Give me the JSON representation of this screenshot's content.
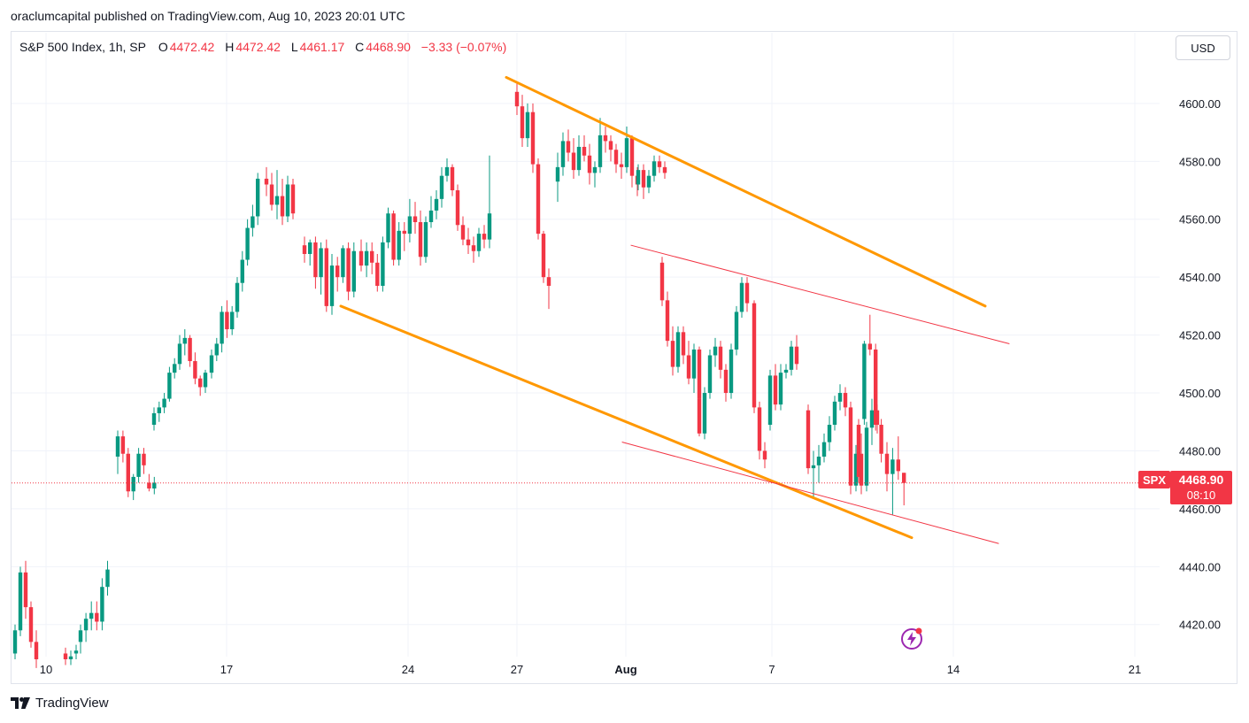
{
  "publisher_line": "oraclumcapital published on TradingView.com, Aug 10, 2023 20:01 UTC",
  "legend": {
    "title": "S&P 500 Index, 1h, SP",
    "open_key": "O",
    "open": "4472.42",
    "high_key": "H",
    "high": "4472.42",
    "low_key": "L",
    "low": "4461.17",
    "close_key": "C",
    "close": "4468.90",
    "change": "−3.33 (−0.07%)"
  },
  "currency_button": "USD",
  "price_tag": {
    "symbol": "SPX",
    "price": "4468.90",
    "countdown": "08:10"
  },
  "brand": {
    "name": "TradingView",
    "icon": "tradingview-logo-icon"
  },
  "badge_icon": "lightning-icon",
  "colors": {
    "up": "#089981",
    "down": "#f23645",
    "channel_main": "#ff9800",
    "channel_inner": "#f23645",
    "grid": "#f0f3fa"
  },
  "chart_data": {
    "type": "candlestick",
    "interval": "1h",
    "ylim": [
      4408,
      4618
    ],
    "x_tick_labels": [
      "10",
      "17",
      "24",
      "27",
      "Aug",
      "7",
      "14",
      "21"
    ],
    "y_ticks": [
      4420.0,
      4440.0,
      4460.0,
      4480.0,
      4500.0,
      4520.0,
      4540.0,
      4560.0,
      4580.0,
      4600.0
    ],
    "y_tick_labels": [
      "4420.00",
      "4440.00",
      "4460.00",
      "4480.00",
      "4500.00",
      "4520.00",
      "4540.00",
      "4560.00",
      "4580.00",
      "4600.00"
    ],
    "last_price": 4468.9,
    "grid": true,
    "candles_ohlc": [
      [
        4410,
        4420,
        4408,
        4418
      ],
      [
        4418,
        4440,
        4416,
        4438
      ],
      [
        4438,
        4442,
        4422,
        4426
      ],
      [
        4426,
        4428,
        4412,
        4414
      ],
      [
        4414,
        4418,
        4405,
        4408
      ],
      [
        4410,
        4412,
        4406,
        4408
      ],
      [
        4408,
        4411,
        4406,
        4409
      ],
      [
        4410,
        4413,
        4408,
        4411
      ],
      [
        4414,
        4420,
        4410,
        4418
      ],
      [
        4418,
        4424,
        4414,
        4422
      ],
      [
        4422,
        4428,
        4418,
        4424
      ],
      [
        4424,
        4428,
        4418,
        4421
      ],
      [
        4421,
        4436,
        4418,
        4433
      ],
      [
        4433,
        4442,
        4430,
        4439
      ],
      [
        4478,
        4487,
        4472,
        4485
      ],
      [
        4485,
        4487,
        4476,
        4479
      ],
      [
        4479,
        4481,
        4464,
        4466
      ],
      [
        4466,
        4472,
        4463,
        4471
      ],
      [
        4471,
        4481,
        4469,
        4479
      ],
      [
        4479,
        4481,
        4472,
        4475
      ],
      [
        4469,
        4472,
        4466,
        4467
      ],
      [
        4467,
        4471,
        4465,
        4469
      ],
      [
        4489,
        4495,
        4487,
        4493
      ],
      [
        4493,
        4497,
        4490,
        4495
      ],
      [
        4495,
        4500,
        4493,
        4498
      ],
      [
        4498,
        4509,
        4497,
        4507
      ],
      [
        4507,
        4512,
        4505,
        4510
      ],
      [
        4510,
        4520,
        4508,
        4517
      ],
      [
        4517,
        4522,
        4513,
        4519
      ],
      [
        4519,
        4520,
        4509,
        4511
      ],
      [
        4511,
        4514,
        4503,
        4505
      ],
      [
        4505,
        4506,
        4499,
        4502
      ],
      [
        4502,
        4508,
        4500,
        4507
      ],
      [
        4507,
        4515,
        4505,
        4513
      ],
      [
        4513,
        4519,
        4511,
        4517
      ],
      [
        4517,
        4530,
        4514,
        4528
      ],
      [
        4528,
        4532,
        4519,
        4522
      ],
      [
        4522,
        4530,
        4520,
        4528
      ],
      [
        4528,
        4540,
        4526,
        4538
      ],
      [
        4538,
        4549,
        4535,
        4546
      ],
      [
        4546,
        4560,
        4544,
        4557
      ],
      [
        4557,
        4565,
        4554,
        4561
      ],
      [
        4561,
        4576,
        4558,
        4574
      ],
      [
        4574,
        4578,
        4568,
        4572
      ],
      [
        4572,
        4576,
        4563,
        4565
      ],
      [
        4565,
        4577,
        4560,
        4568
      ],
      [
        4568,
        4574,
        4558,
        4561
      ],
      [
        4561,
        4575,
        4559,
        4572
      ],
      [
        4572,
        4574,
        4560,
        4562
      ],
      [
        4551,
        4554,
        4545,
        4548
      ],
      [
        4548,
        4553,
        4544,
        4552
      ],
      [
        4552,
        4554,
        4536,
        4540
      ],
      [
        4540,
        4552,
        4534,
        4550
      ],
      [
        4550,
        4553,
        4528,
        4530
      ],
      [
        4530,
        4548,
        4527,
        4544
      ],
      [
        4544,
        4547,
        4535,
        4540
      ],
      [
        4540,
        4551,
        4538,
        4550
      ],
      [
        4550,
        4552,
        4532,
        4535
      ],
      [
        4535,
        4552,
        4533,
        4549
      ],
      [
        4549,
        4553,
        4542,
        4544
      ],
      [
        4544,
        4552,
        4540,
        4549
      ],
      [
        4549,
        4552,
        4541,
        4545
      ],
      [
        4545,
        4548,
        4535,
        4537
      ],
      [
        4537,
        4554,
        4535,
        4552
      ],
      [
        4552,
        4564,
        4550,
        4562
      ],
      [
        4562,
        4563,
        4544,
        4546
      ],
      [
        4546,
        4559,
        4544,
        4556
      ],
      [
        4556,
        4559,
        4549,
        4555
      ],
      [
        4555,
        4567,
        4552,
        4561
      ],
      [
        4561,
        4566,
        4555,
        4559
      ],
      [
        4559,
        4563,
        4544,
        4547
      ],
      [
        4547,
        4561,
        4545,
        4559
      ],
      [
        4559,
        4568,
        4557,
        4563
      ],
      [
        4563,
        4570,
        4560,
        4567
      ],
      [
        4567,
        4578,
        4564,
        4575
      ],
      [
        4575,
        4581,
        4573,
        4578
      ],
      [
        4578,
        4579,
        4568,
        4570
      ],
      [
        4570,
        4572,
        4556,
        4558
      ],
      [
        4558,
        4561,
        4551,
        4553
      ],
      [
        4553,
        4557,
        4548,
        4551
      ],
      [
        4551,
        4554,
        4545,
        4549
      ],
      [
        4549,
        4557,
        4547,
        4555
      ],
      [
        4555,
        4558,
        4550,
        4553
      ],
      [
        4553,
        4582,
        4550,
        4562
      ],
      [
        4604,
        4607,
        4596,
        4599
      ],
      [
        4599,
        4603,
        4585,
        4588
      ],
      [
        4588,
        4600,
        4585,
        4597
      ],
      [
        4597,
        4600,
        4576,
        4579
      ],
      [
        4579,
        4581,
        4553,
        4555
      ],
      [
        4555,
        4556,
        4538,
        4540
      ],
      [
        4540,
        4543,
        4529,
        4537
      ],
      [
        4573,
        4583,
        4566,
        4578
      ],
      [
        4578,
        4590,
        4575,
        4587
      ],
      [
        4587,
        4591,
        4580,
        4583
      ],
      [
        4583,
        4588,
        4574,
        4577
      ],
      [
        4577,
        4589,
        4575,
        4585
      ],
      [
        4585,
        4589,
        4580,
        4582
      ],
      [
        4582,
        4586,
        4572,
        4576
      ],
      [
        4576,
        4580,
        4571,
        4578
      ],
      [
        4578,
        4595,
        4576,
        4589
      ],
      [
        4589,
        4592,
        4583,
        4587
      ],
      [
        4587,
        4589,
        4580,
        4584
      ],
      [
        4584,
        4586,
        4576,
        4579
      ],
      [
        4579,
        4583,
        4574,
        4578
      ],
      [
        4578,
        4592,
        4576,
        4588
      ],
      [
        4588,
        4589,
        4571,
        4575
      ],
      [
        4575,
        4578,
        4568,
        4572
      ],
      [
        4572,
        4579,
        4570,
        4577
      ],
      [
        4577,
        4579,
        4567,
        4571
      ],
      [
        4571,
        4577,
        4569,
        4575
      ],
      [
        4575,
        4582,
        4573,
        4580
      ],
      [
        4580,
        4582,
        4576,
        4578
      ],
      [
        4578,
        4580,
        4574,
        4576
      ],
      [
        4545,
        4547,
        4530,
        4532
      ],
      [
        4532,
        4535,
        4516,
        4518
      ],
      [
        4518,
        4523,
        4506,
        4509
      ],
      [
        4509,
        4523,
        4507,
        4521
      ],
      [
        4521,
        4523,
        4510,
        4513
      ],
      [
        4513,
        4518,
        4503,
        4505
      ],
      [
        4505,
        4517,
        4500,
        4515
      ],
      [
        4515,
        4516,
        4496,
        4498
      ],
      [
        4498,
        4499,
        4485,
        4486
      ],
      [
        4486,
        4502,
        4484,
        4500
      ],
      [
        4500,
        4515,
        4498,
        4513
      ],
      [
        4513,
        4519,
        4509,
        4516
      ],
      [
        4516,
        4518,
        4505,
        4508
      ],
      [
        4508,
        4510,
        4497,
        4500
      ],
      [
        4500,
        4517,
        4498,
        4515
      ],
      [
        4515,
        4530,
        4513,
        4528
      ],
      [
        4528,
        4540,
        4526,
        4538
      ],
      [
        4538,
        4540,
        4528,
        4531
      ],
      [
        4531,
        4532,
        4493,
        4495
      ],
      [
        4495,
        4497,
        4477,
        4480
      ],
      [
        4480,
        4483,
        4474,
        4477
      ],
      [
        4489,
        4508,
        4487,
        4506
      ],
      [
        4506,
        4510,
        4494,
        4496
      ],
      [
        4496,
        4510,
        4494,
        4507
      ],
      [
        4507,
        4510,
        4505,
        4508
      ],
      [
        4508,
        4518,
        4506,
        4516
      ],
      [
        4516,
        4520,
        4508,
        4510
      ],
      [
        4494,
        4496,
        4472,
        4474
      ],
      [
        4474,
        4480,
        4464,
        4475
      ],
      [
        4475,
        4482,
        4469,
        4478
      ],
      [
        4478,
        4486,
        4476,
        4483
      ],
      [
        4483,
        4492,
        4480,
        4489
      ],
      [
        4489,
        4499,
        4487,
        4497
      ],
      [
        4497,
        4503,
        4494,
        4500
      ],
      [
        4500,
        4502,
        4492,
        4495
      ],
      [
        4495,
        4497,
        4465,
        4468
      ],
      [
        4468,
        4482,
        4466,
        4479
      ],
      [
        4479,
        4486,
        4465,
        4468
      ],
      [
        4468,
        4490,
        4466,
        4488
      ],
      [
        4488,
        4498,
        4482,
        4494
      ],
      [
        4494,
        4496,
        4486,
        4489
      ],
      [
        4489,
        4491,
        4469,
        4471
      ],
      [
        4491,
        4518,
        4489,
        4517
      ],
      [
        4517,
        4527,
        4513,
        4515
      ],
      [
        4515,
        4517,
        4487,
        4489
      ],
      [
        4489,
        4491,
        4476,
        4479
      ],
      [
        4479,
        4483,
        4466,
        4472
      ],
      [
        4472,
        4481,
        4458,
        4477
      ],
      [
        4477,
        4485,
        4470,
        4473
      ],
      [
        4472.42,
        4472.42,
        4461.17,
        4468.9
      ]
    ],
    "annotations": [
      {
        "kind": "trendline",
        "color": "#ff9800",
        "from": [
          "2023-07-27",
          4609
        ],
        "to": [
          "2023-08-15",
          4530
        ]
      },
      {
        "kind": "trendline",
        "color": "#ff9800",
        "from": [
          "2023-07-21",
          4530
        ],
        "to": [
          "2023-08-12",
          4450
        ]
      },
      {
        "kind": "trendline",
        "color": "#f23645",
        "from": [
          "2023-08-03",
          4551
        ],
        "to": [
          "2023-08-16",
          4517
        ]
      },
      {
        "kind": "trendline",
        "color": "#f23645",
        "from": [
          "2023-08-02",
          4483
        ],
        "to": [
          "2023-08-16",
          4448
        ]
      }
    ]
  }
}
